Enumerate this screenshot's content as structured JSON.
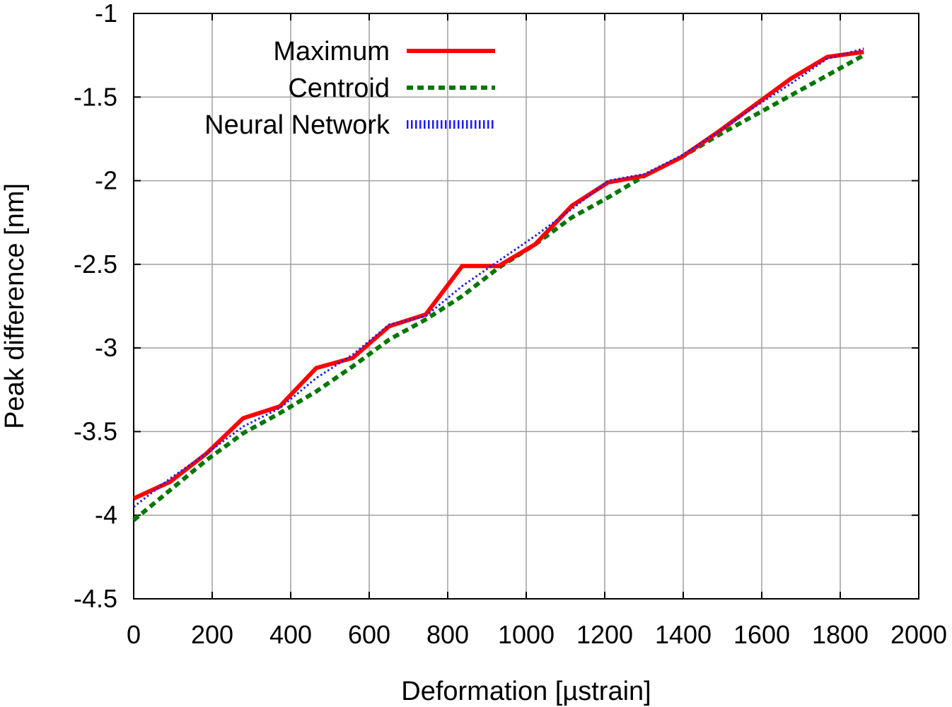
{
  "chart_data": {
    "type": "line",
    "title": "",
    "xlabel": "Deformation [µstrain]",
    "ylabel": "Peak difference [nm]",
    "xlim": [
      0,
      2000
    ],
    "ylim": [
      -4.5,
      -1
    ],
    "xticks": [
      0,
      200,
      400,
      600,
      800,
      1000,
      1200,
      1400,
      1600,
      1800,
      2000
    ],
    "yticks": [
      -1,
      -1.5,
      -2,
      -2.5,
      -3,
      -3.5,
      -4,
      -4.5
    ],
    "xtick_labels": [
      "0",
      "200",
      "400",
      "600",
      "800",
      "1000",
      "1200",
      "1400",
      "1600",
      "1800",
      "2000"
    ],
    "ytick_labels": [
      "-1",
      "-1.5",
      "-2",
      "-2.5",
      "-3",
      "-3.5",
      "-4",
      "-4.5"
    ],
    "grid": true,
    "legend_position": "top-left",
    "x": [
      0,
      93,
      186,
      279,
      372,
      465,
      558,
      651,
      744,
      837,
      930,
      1023,
      1116,
      1209,
      1302,
      1395,
      1488,
      1581,
      1674,
      1767,
      1860
    ],
    "series": [
      {
        "name": "Maximum",
        "color": "#ff0000",
        "style": "solid",
        "values": [
          -3.9,
          -3.8,
          -3.63,
          -3.42,
          -3.35,
          -3.12,
          -3.06,
          -2.87,
          -2.8,
          -2.51,
          -2.51,
          -2.38,
          -2.15,
          -2.01,
          -1.97,
          -1.86,
          -1.71,
          -1.55,
          -1.39,
          -1.26,
          -1.23
        ]
      },
      {
        "name": "Centroid",
        "color": "#007700",
        "style": "dashed",
        "values": [
          -4.03,
          -3.85,
          -3.67,
          -3.51,
          -3.39,
          -3.26,
          -3.11,
          -2.95,
          -2.83,
          -2.69,
          -2.52,
          -2.38,
          -2.22,
          -2.1,
          -1.97,
          -1.86,
          -1.73,
          -1.61,
          -1.49,
          -1.37,
          -1.25
        ]
      },
      {
        "name": "Neural Network",
        "color": "#1a1aff",
        "style": "dotted",
        "values": [
          -3.95,
          -3.78,
          -3.63,
          -3.47,
          -3.36,
          -3.18,
          -3.04,
          -2.86,
          -2.81,
          -2.63,
          -2.48,
          -2.33,
          -2.17,
          -2.0,
          -1.96,
          -1.85,
          -1.71,
          -1.56,
          -1.42,
          -1.27,
          -1.21
        ]
      }
    ]
  }
}
